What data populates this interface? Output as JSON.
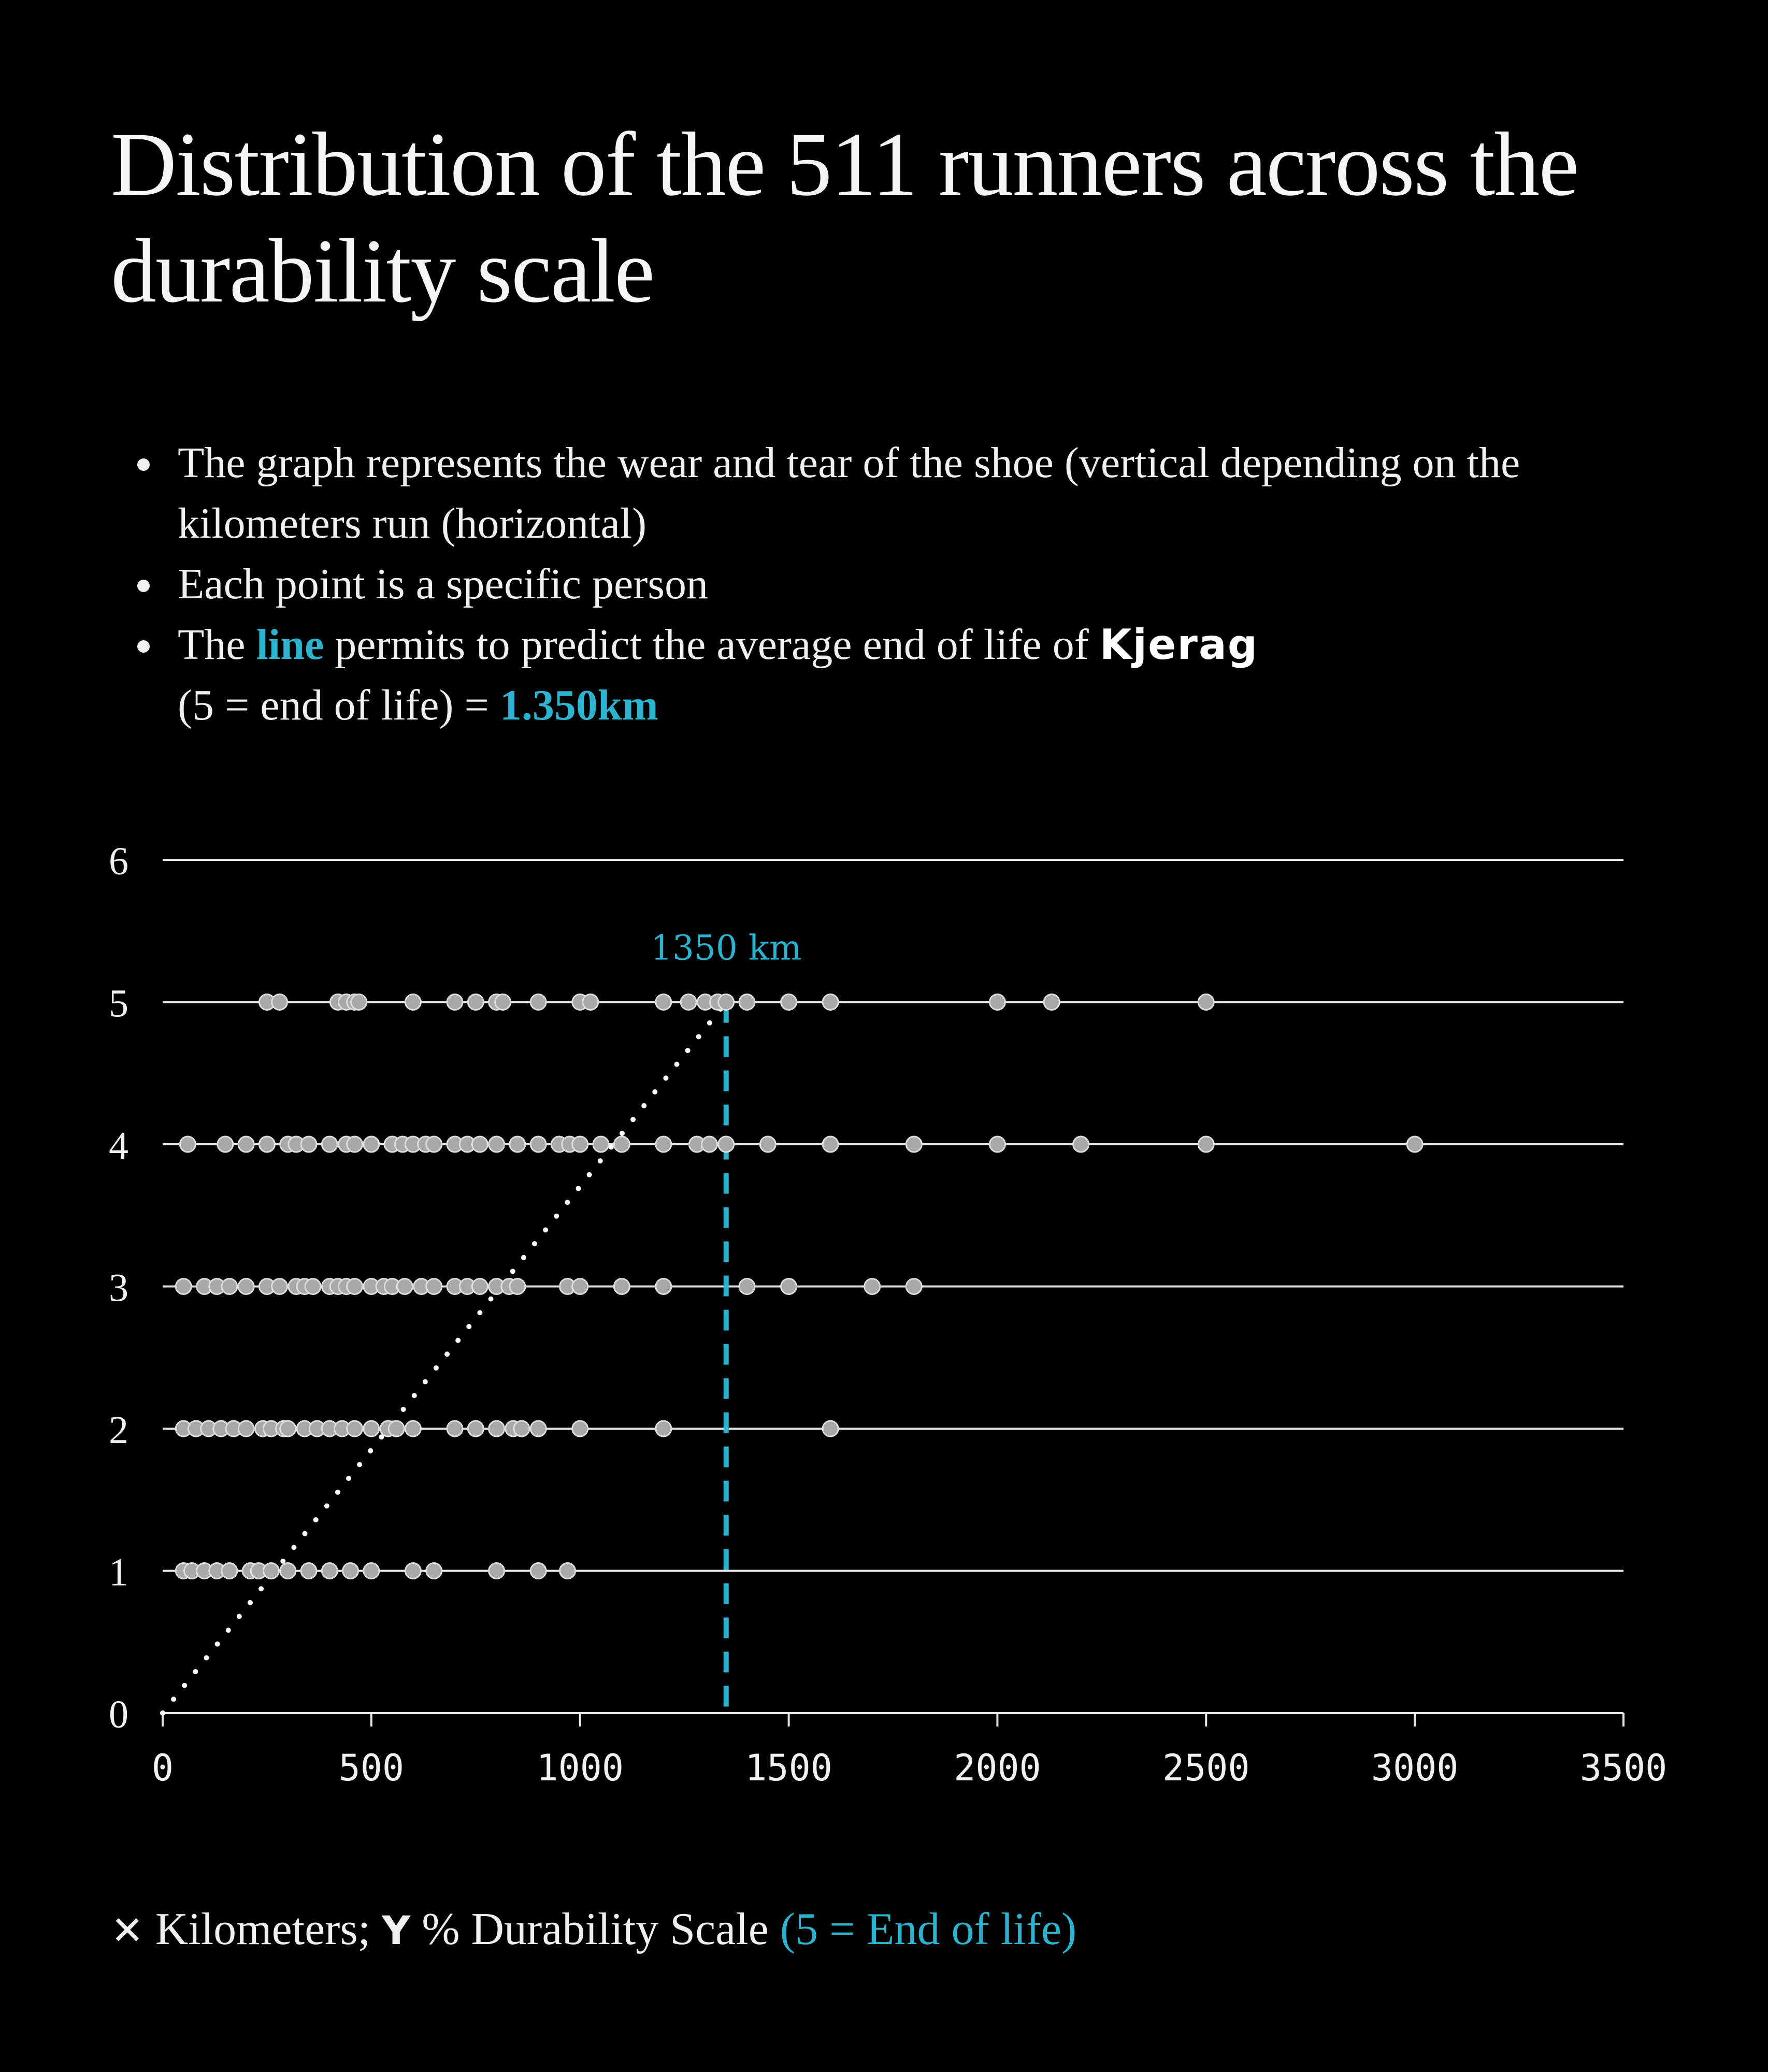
{
  "colors": {
    "background": "#000000",
    "text": "#f0f0f0",
    "accent": "#2bb3cf",
    "point_fill": "#a8a8a8",
    "point_stroke": "#dcdcdc",
    "grid": "#e6e6e6"
  },
  "header": {
    "title": "Distribution of the 511 runners across the durability scale"
  },
  "bullets": {
    "item1": "The graph represents the wear and tear of the shoe (vertical depending on the kilometers run (horizontal)",
    "item2": "Each point is a specific person",
    "item3_before": "The ",
    "item3_highlight": "line",
    "item3_after": " permits to predict the average end of life of ",
    "item3_brand": "Kjerag",
    "item3_line2_before": "(5 = end of life) = ",
    "item3_line2_value": "1.350km"
  },
  "legend": {
    "x_symbol": "✕",
    "x_text": "Kilometers;",
    "y_symbol": "Y",
    "y_text": "% Durability Scale",
    "note": "(5 = End of life)"
  },
  "chart_data": {
    "type": "scatter",
    "title": "Distribution of the 511 runners across the durability scale",
    "xlabel": "Kilometers",
    "ylabel": "% Durability Scale",
    "xlim": [
      0,
      3500
    ],
    "ylim": [
      0,
      6
    ],
    "x_ticks": [
      "0",
      "500",
      "1000",
      "1500",
      "2000",
      "2500",
      "3000",
      "3500"
    ],
    "y_ticks": [
      "0",
      "1",
      "2",
      "3",
      "4",
      "5",
      "6"
    ],
    "grid": "horizontal",
    "series": [
      {
        "y": 5,
        "x": [
          250,
          280,
          420,
          440,
          460,
          470,
          600,
          700,
          750,
          800,
          815,
          900,
          1000,
          1025,
          1200,
          1260,
          1300,
          1330,
          1350,
          1400,
          1500,
          1600,
          2000,
          2130,
          2500
        ]
      },
      {
        "y": 4,
        "x": [
          60,
          150,
          200,
          250,
          300,
          320,
          350,
          400,
          440,
          460,
          500,
          550,
          575,
          600,
          630,
          650,
          700,
          730,
          760,
          800,
          850,
          900,
          950,
          975,
          1000,
          1050,
          1100,
          1200,
          1280,
          1310,
          1350,
          1450,
          1600,
          1800,
          2000,
          2200,
          2500,
          3000
        ]
      },
      {
        "y": 3,
        "x": [
          50,
          100,
          130,
          160,
          200,
          250,
          280,
          320,
          340,
          360,
          400,
          420,
          440,
          460,
          500,
          530,
          550,
          580,
          620,
          650,
          700,
          730,
          760,
          800,
          830,
          850,
          970,
          1000,
          1100,
          1200,
          1400,
          1500,
          1700,
          1800
        ]
      },
      {
        "y": 2,
        "x": [
          50,
          80,
          110,
          140,
          170,
          200,
          240,
          260,
          290,
          300,
          340,
          370,
          400,
          430,
          460,
          500,
          540,
          560,
          600,
          700,
          750,
          800,
          840,
          860,
          900,
          1000,
          1200,
          1600
        ]
      },
      {
        "y": 1,
        "x": [
          50,
          70,
          100,
          130,
          160,
          210,
          230,
          260,
          300,
          350,
          400,
          450,
          500,
          600,
          650,
          800,
          900,
          970
        ]
      }
    ],
    "trend_line": {
      "from": [
        0,
        0
      ],
      "to": [
        1350,
        5
      ],
      "style": "dotted"
    },
    "marker": {
      "x": 1350,
      "label": "1350 km",
      "style": "dashed"
    }
  }
}
